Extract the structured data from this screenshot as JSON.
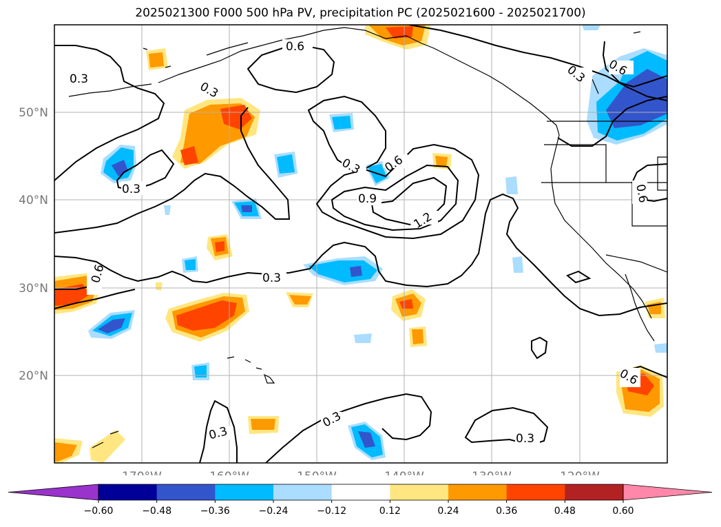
{
  "title": "2025021300 F000 500 hPa PV, precipitation PC (2025021600 - 2025021700)",
  "chart_data": {
    "type": "contour-map",
    "title": "2025021300 F000 500 hPa PV, precipitation PC (2025021600 - 2025021700)",
    "projection": "cylindrical",
    "lon_range": [
      -180,
      -110
    ],
    "lat_range": [
      10,
      60
    ],
    "lon_ticks": [
      {
        "value": -170,
        "label": "170°W"
      },
      {
        "value": -160,
        "label": "160°W"
      },
      {
        "value": -150,
        "label": "150°W"
      },
      {
        "value": -140,
        "label": "140°W"
      },
      {
        "value": -130,
        "label": "130°W"
      },
      {
        "value": -120,
        "label": "120°W"
      }
    ],
    "lat_ticks": [
      {
        "value": 20,
        "label": "20°N"
      },
      {
        "value": 30,
        "label": "30°N"
      },
      {
        "value": 40,
        "label": "40°N"
      },
      {
        "value": 50,
        "label": "50°N"
      }
    ],
    "grid": true,
    "contour_labels": [
      "0.3",
      "0.6",
      "0.9",
      "1.2"
    ],
    "colorbar": {
      "orientation": "horizontal",
      "extend": "both",
      "levels": [
        -0.6,
        -0.48,
        -0.36,
        -0.24,
        -0.12,
        0.12,
        0.24,
        0.36,
        0.48,
        0.6
      ],
      "tick_labels": [
        "−0.60",
        "−0.48",
        "−0.36",
        "−0.24",
        "−0.12",
        "0.12",
        "0.24",
        "0.36",
        "0.48",
        "0.60"
      ],
      "colors": [
        "#9933cc",
        "#000099",
        "#3355cc",
        "#00bbff",
        "#aaddff",
        "#ffffff",
        "#ffe680",
        "#ff9900",
        "#ff4400",
        "#b22222",
        "#ff88aa"
      ]
    }
  }
}
